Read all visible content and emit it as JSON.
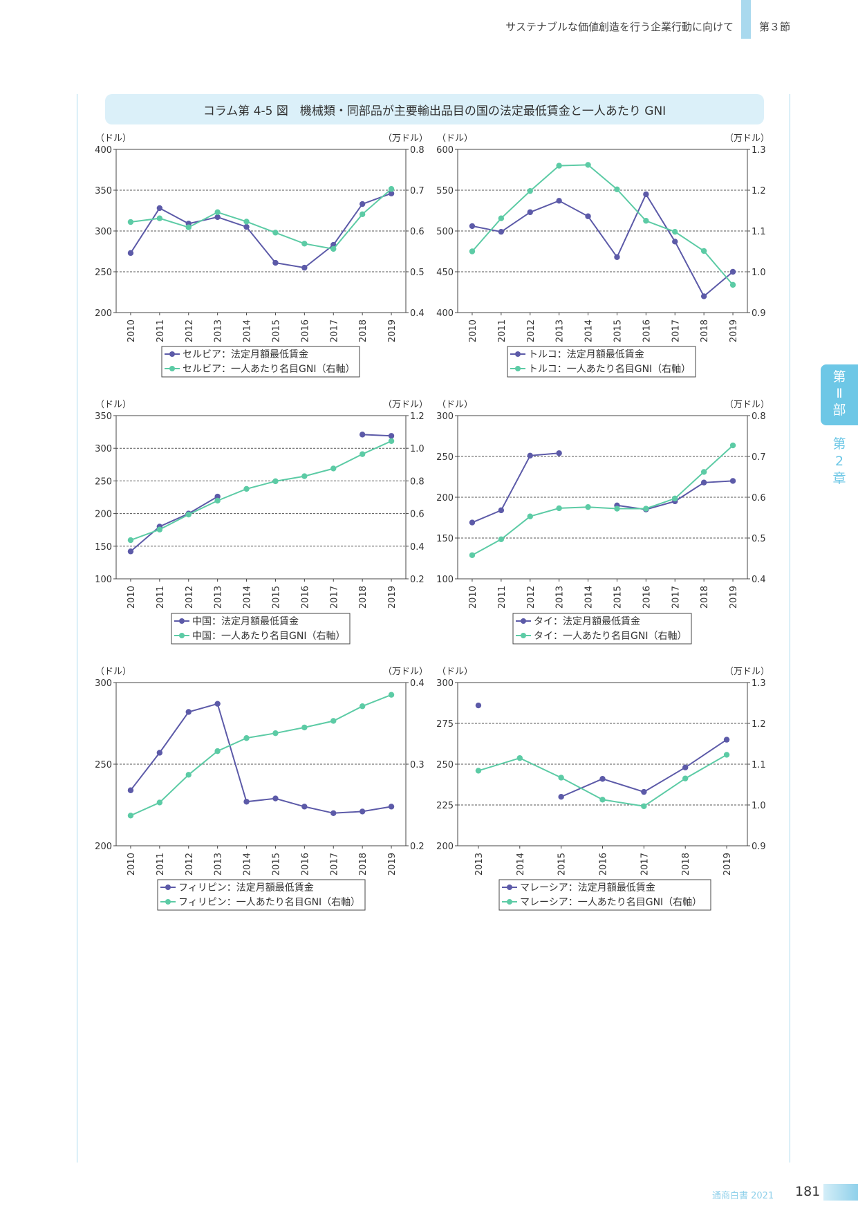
{
  "header": {
    "title": "サステナブルな価値創造を行う企業行動に向けて",
    "section": "第３節"
  },
  "figure_title": "コラム第 4-5 図　機械類・同部品が主要輸出品目の国の法定最低賃金と一人あたり GNI",
  "side": {
    "part": [
      "第",
      "Ⅱ",
      "部"
    ],
    "chapter": [
      "第",
      "2",
      "章"
    ]
  },
  "footer": {
    "label": "通商白書 2021",
    "page": "181"
  },
  "colors": {
    "wage": "#5c5aa8",
    "gni": "#5ccba5",
    "accent": "#6dc7e6"
  },
  "chart_data": [
    {
      "type": "line",
      "country": "Serbia",
      "categories": [
        "2010",
        "2011",
        "2012",
        "2013",
        "2014",
        "2015",
        "2016",
        "2017",
        "2018",
        "2019"
      ],
      "y_unit_label": "（ドル）",
      "y2_unit_label": "（万ドル）",
      "ylim": [
        200,
        400
      ],
      "yticks": [
        200,
        250,
        300,
        350,
        400
      ],
      "yticklabels": [
        "200",
        "250",
        "300",
        "350",
        "400"
      ],
      "y2lim": [
        0.4,
        0.8
      ],
      "y2ticks": [
        0.4,
        0.5,
        0.6,
        0.7,
        0.8
      ],
      "y2ticklabels": [
        "0.4",
        "0.5",
        "0.6",
        "0.7",
        "0.8"
      ],
      "series": [
        {
          "name": "セルビア：法定月額最低賃金",
          "axis": "left",
          "values": [
            273,
            328,
            309,
            317,
            305,
            261,
            255,
            283,
            333,
            346
          ]
        },
        {
          "name": "セルビア：一人あたり名目GNI（右軸）",
          "axis": "right",
          "values": [
            0.622,
            0.631,
            0.609,
            0.646,
            0.623,
            0.596,
            0.569,
            0.556,
            0.641,
            0.703
          ]
        }
      ]
    },
    {
      "type": "line",
      "country": "Turkey",
      "categories": [
        "2010",
        "2011",
        "2012",
        "2013",
        "2014",
        "2015",
        "2016",
        "2017",
        "2018",
        "2019"
      ],
      "y_unit_label": "（ドル）",
      "y2_unit_label": "（万ドル）",
      "ylim": [
        400,
        600
      ],
      "yticks": [
        400,
        450,
        500,
        550,
        600
      ],
      "yticklabels": [
        "400",
        "450",
        "500",
        "550",
        "600"
      ],
      "y2lim": [
        0.9,
        1.3
      ],
      "y2ticks": [
        0.9,
        1.0,
        1.1,
        1.2,
        1.3
      ],
      "y2ticklabels": [
        "0.9",
        "1.0",
        "1.1",
        "1.2",
        "1.3"
      ],
      "series": [
        {
          "name": "トルコ：法定月額最低賃金",
          "axis": "left",
          "values": [
            506,
            499,
            523,
            537,
            518,
            468,
            545,
            487,
            420,
            450
          ]
        },
        {
          "name": "トルコ：一人あたり名目GNI（右軸）",
          "axis": "right",
          "values": [
            1.05,
            1.131,
            1.198,
            1.26,
            1.262,
            1.202,
            1.125,
            1.098,
            1.051,
            0.968
          ]
        }
      ]
    },
    {
      "type": "line",
      "country": "China",
      "categories": [
        "2010",
        "2011",
        "2012",
        "2013",
        "2014",
        "2015",
        "2016",
        "2017",
        "2018",
        "2019"
      ],
      "y_unit_label": "（ドル）",
      "y2_unit_label": "（万ドル）",
      "ylim": [
        100,
        350
      ],
      "yticks": [
        100,
        150,
        200,
        250,
        300,
        350
      ],
      "yticklabels": [
        "100",
        "150",
        "200",
        "250",
        "300",
        "350"
      ],
      "y2lim": [
        0.2,
        1.2
      ],
      "y2ticks": [
        0.2,
        0.4,
        0.6,
        0.8,
        1.0,
        1.2
      ],
      "y2ticklabels": [
        "0.2",
        "0.4",
        "0.6",
        "0.8",
        "1.0",
        "1.2"
      ],
      "series": [
        {
          "name": "中国：法定月額最低賃金",
          "axis": "left",
          "values": [
            142,
            180,
            200,
            226,
            null,
            null,
            null,
            null,
            321,
            319
          ]
        },
        {
          "name": "中国：一人あたり名目GNI（右軸）",
          "axis": "right",
          "values": [
            0.437,
            0.502,
            0.594,
            0.679,
            0.751,
            0.798,
            0.829,
            0.876,
            0.964,
            1.044
          ]
        }
      ]
    },
    {
      "type": "line",
      "country": "Thailand",
      "categories": [
        "2010",
        "2011",
        "2012",
        "2013",
        "2014",
        "2015",
        "2016",
        "2017",
        "2018",
        "2019"
      ],
      "y_unit_label": "（ドル）",
      "y2_unit_label": "（万ドル）",
      "ylim": [
        100,
        300
      ],
      "yticks": [
        100,
        150,
        200,
        250,
        300
      ],
      "yticklabels": [
        "100",
        "150",
        "200",
        "250",
        "300"
      ],
      "y2lim": [
        0.4,
        0.8
      ],
      "y2ticks": [
        0.4,
        0.5,
        0.6,
        0.7,
        0.8
      ],
      "y2ticklabels": [
        "0.4",
        "0.5",
        "0.6",
        "0.7",
        "0.8"
      ],
      "series": [
        {
          "name": "タイ：法定月額最低賃金",
          "axis": "left",
          "values": [
            169,
            184,
            251,
            254,
            null,
            190,
            185,
            195,
            218,
            220
          ]
        },
        {
          "name": "タイ：一人あたり名目GNI（右軸）",
          "axis": "right",
          "values": [
            0.458,
            0.497,
            0.553,
            0.573,
            0.576,
            0.572,
            0.572,
            0.597,
            0.662,
            0.727
          ]
        }
      ]
    },
    {
      "type": "line",
      "country": "Philippines",
      "categories": [
        "2010",
        "2011",
        "2012",
        "2013",
        "2014",
        "2015",
        "2016",
        "2017",
        "2018",
        "2019"
      ],
      "y_unit_label": "（ドル）",
      "y2_unit_label": "（万ドル）",
      "ylim": [
        200,
        300
      ],
      "yticks": [
        200,
        250,
        300
      ],
      "yticklabels": [
        "200",
        "250",
        "300"
      ],
      "y2lim": [
        0.2,
        0.4
      ],
      "y2ticks": [
        0.2,
        0.3,
        0.4
      ],
      "y2ticklabels": [
        "0.2",
        "0.3",
        "0.4"
      ],
      "series": [
        {
          "name": "フィリピン：法定月額最低賃金",
          "axis": "left",
          "values": [
            234,
            257,
            282,
            287,
            227,
            229,
            224,
            220,
            221,
            224
          ]
        },
        {
          "name": "フィリピン：一人あたり名目GNI（右軸）",
          "axis": "right",
          "values": [
            0.237,
            0.253,
            0.287,
            0.316,
            0.332,
            0.338,
            0.345,
            0.353,
            0.371,
            0.385
          ]
        }
      ]
    },
    {
      "type": "line",
      "country": "Malaysia",
      "categories": [
        "2013",
        "2014",
        "2015",
        "2016",
        "2017",
        "2018",
        "2019"
      ],
      "y_unit_label": "（ドル）",
      "y2_unit_label": "（万ドル）",
      "ylim": [
        200,
        300
      ],
      "yticks": [
        200,
        225,
        250,
        275,
        300
      ],
      "yticklabels": [
        "200",
        "225",
        "250",
        "275",
        "300"
      ],
      "y2lim": [
        0.9,
        1.3
      ],
      "y2ticks": [
        0.9,
        1.0,
        1.1,
        1.2,
        1.3
      ],
      "y2ticklabels": [
        "0.9",
        "1.0",
        "1.1",
        "1.2",
        "1.3"
      ],
      "series": [
        {
          "name": "マレーシア：法定月額最低賃金",
          "axis": "left",
          "values": [
            286,
            null,
            230,
            241,
            233,
            248,
            265
          ]
        },
        {
          "name": "マレーシア：一人あたり名目GNI（右軸）",
          "axis": "right",
          "values": [
            1.084,
            1.115,
            1.067,
            1.013,
            0.997,
            1.065,
            1.123
          ]
        }
      ]
    }
  ]
}
